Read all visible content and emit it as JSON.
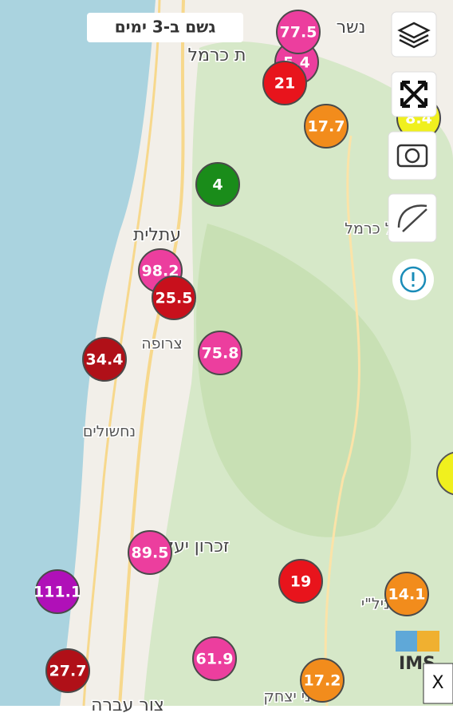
{
  "header": {
    "title": "גשם ב-3 ימים"
  },
  "places": [
    "נשר",
    "ת כרמל",
    "עתלית",
    "צרופה",
    "נחשולים",
    "זכרון יעק",
    "דל כרמל",
    "ת ניל\"י",
    "ני יצחק",
    "צור עברה"
  ],
  "markers": [
    {
      "value": 5.4,
      "color": "#ec3e9e"
    },
    {
      "value": 77.5,
      "color": "#ec3e9e"
    },
    {
      "value": 21,
      "color": "#e8141c"
    },
    {
      "value": 17.7,
      "color": "#f28c1c"
    },
    {
      "value": 8.4,
      "color": "#f0f01e"
    },
    {
      "value": 4,
      "color": "#1a8c1a"
    },
    {
      "value": 98.2,
      "color": "#ec3e9e"
    },
    {
      "value": 25.5,
      "color": "#c8101c"
    },
    {
      "value": 75.8,
      "color": "#ec3e9e"
    },
    {
      "value": 34.4,
      "color": "#b01018"
    },
    {
      "value": 89.5,
      "color": "#ec3e9e"
    },
    {
      "value": 111.1,
      "color": "#b010b8"
    },
    {
      "value": 19,
      "color": "#e8141c"
    },
    {
      "value": 14.1,
      "color": "#f28c1c"
    },
    {
      "value": 27.7,
      "color": "#b01018"
    },
    {
      "value": 61.9,
      "color": "#ec3e9e"
    },
    {
      "value": 17.2,
      "color": "#f28c1c"
    }
  ],
  "logo": "IMS",
  "close": "X"
}
